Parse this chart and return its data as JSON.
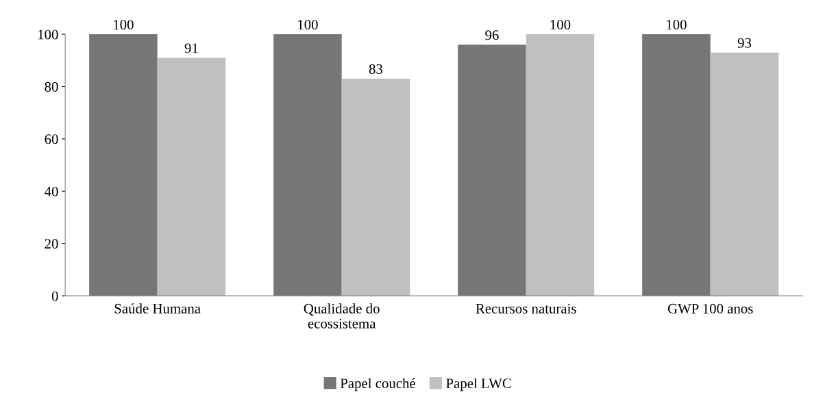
{
  "chart_data": {
    "type": "bar",
    "categories": [
      "Saúde Humana",
      "Qualidade do\necossistema",
      "Recursos naturais",
      "GWP 100 anos"
    ],
    "series": [
      {
        "name": "Papel couché",
        "color": "#767676",
        "values": [
          100,
          100,
          96,
          100
        ]
      },
      {
        "name": "Papel LWC",
        "color": "#c0c0c0",
        "values": [
          91,
          83,
          100,
          93
        ]
      }
    ],
    "ylim": [
      0,
      100
    ],
    "yticks": [
      0,
      20,
      40,
      60,
      80,
      100
    ],
    "grid": false,
    "legend": "bottom",
    "data_labels": true
  }
}
